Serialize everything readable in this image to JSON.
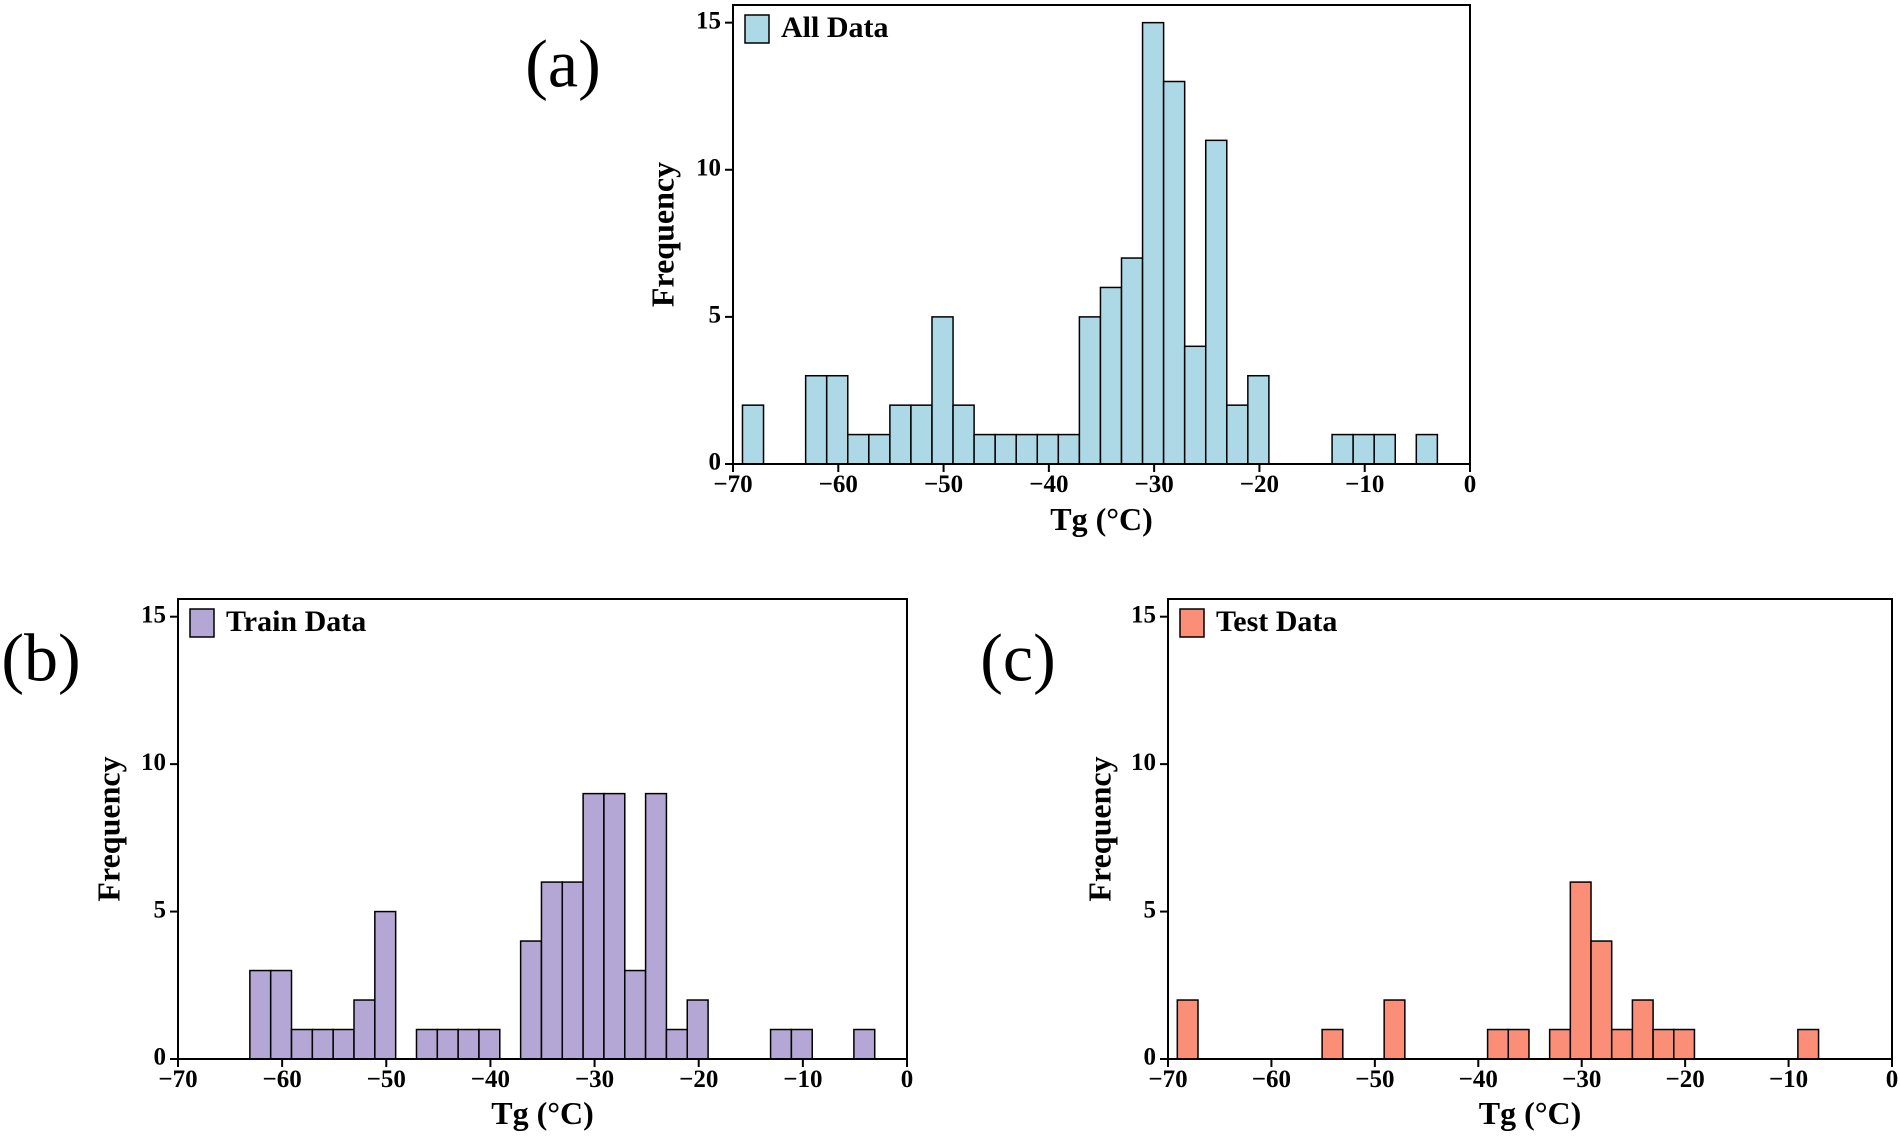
{
  "panels": [
    {
      "label": "(a)",
      "legend": "All Data",
      "chart_data": {
        "type": "bar",
        "title": "",
        "xlabel": "Tg (°C)",
        "ylabel": "Frequency",
        "xlim": [
          -70,
          0
        ],
        "ylim": [
          0,
          15.6
        ],
        "xticks": [
          -70,
          -60,
          -50,
          -40,
          -30,
          -20,
          -10,
          0
        ],
        "yticks": [
          0,
          5,
          10,
          15
        ],
        "grid": false,
        "legend_position": "top-left",
        "bar_color": "#add8e6",
        "series": [
          {
            "name": "All Data",
            "bins": [
              {
                "x0": -69.1,
                "x1": -67.1,
                "value": 2
              },
              {
                "x0": -63.1,
                "x1": -61.1,
                "value": 3
              },
              {
                "x0": -61.1,
                "x1": -59.1,
                "value": 3
              },
              {
                "x0": -59.1,
                "x1": -57.1,
                "value": 1
              },
              {
                "x0": -57.1,
                "x1": -55.1,
                "value": 1
              },
              {
                "x0": -55.1,
                "x1": -53.1,
                "value": 2
              },
              {
                "x0": -53.1,
                "x1": -51.1,
                "value": 2
              },
              {
                "x0": -51.1,
                "x1": -49.1,
                "value": 5
              },
              {
                "x0": -49.1,
                "x1": -47.1,
                "value": 2
              },
              {
                "x0": -47.1,
                "x1": -45.1,
                "value": 1
              },
              {
                "x0": -45.1,
                "x1": -43.1,
                "value": 1
              },
              {
                "x0": -43.1,
                "x1": -41.1,
                "value": 1
              },
              {
                "x0": -41.1,
                "x1": -39.1,
                "value": 1
              },
              {
                "x0": -39.1,
                "x1": -37.1,
                "value": 1
              },
              {
                "x0": -37.1,
                "x1": -35.1,
                "value": 5
              },
              {
                "x0": -35.1,
                "x1": -33.1,
                "value": 6
              },
              {
                "x0": -33.1,
                "x1": -31.1,
                "value": 7
              },
              {
                "x0": -31.1,
                "x1": -29.1,
                "value": 15
              },
              {
                "x0": -29.1,
                "x1": -27.1,
                "value": 13
              },
              {
                "x0": -27.1,
                "x1": -25.1,
                "value": 4
              },
              {
                "x0": -25.1,
                "x1": -23.1,
                "value": 11
              },
              {
                "x0": -23.1,
                "x1": -21.1,
                "value": 2
              },
              {
                "x0": -21.1,
                "x1": -19.1,
                "value": 3
              },
              {
                "x0": -13.1,
                "x1": -11.1,
                "value": 1
              },
              {
                "x0": -11.1,
                "x1": -9.1,
                "value": 1
              },
              {
                "x0": -9.1,
                "x1": -7.1,
                "value": 1
              },
              {
                "x0": -5.1,
                "x1": -3.1,
                "value": 1
              }
            ]
          }
        ]
      }
    },
    {
      "label": "(b)",
      "legend": "Train Data",
      "chart_data": {
        "type": "bar",
        "title": "",
        "xlabel": "Tg (°C)",
        "ylabel": "Frequency",
        "xlim": [
          -70,
          0
        ],
        "ylim": [
          0,
          15.6
        ],
        "xticks": [
          -70,
          -60,
          -50,
          -40,
          -30,
          -20,
          -10,
          0
        ],
        "yticks": [
          0,
          5,
          10,
          15
        ],
        "grid": false,
        "legend_position": "top-left",
        "bar_color": "#b4a7d6",
        "series": [
          {
            "name": "Train Data",
            "bins": [
              {
                "x0": -63.1,
                "x1": -61.1,
                "value": 3
              },
              {
                "x0": -61.1,
                "x1": -59.1,
                "value": 3
              },
              {
                "x0": -59.1,
                "x1": -57.1,
                "value": 1
              },
              {
                "x0": -57.1,
                "x1": -55.1,
                "value": 1
              },
              {
                "x0": -55.1,
                "x1": -53.1,
                "value": 1
              },
              {
                "x0": -53.1,
                "x1": -51.1,
                "value": 2
              },
              {
                "x0": -51.1,
                "x1": -49.1,
                "value": 5
              },
              {
                "x0": -47.1,
                "x1": -45.1,
                "value": 1
              },
              {
                "x0": -45.1,
                "x1": -43.1,
                "value": 1
              },
              {
                "x0": -43.1,
                "x1": -41.1,
                "value": 1
              },
              {
                "x0": -41.1,
                "x1": -39.1,
                "value": 1
              },
              {
                "x0": -37.1,
                "x1": -35.1,
                "value": 4
              },
              {
                "x0": -35.1,
                "x1": -33.1,
                "value": 6
              },
              {
                "x0": -33.1,
                "x1": -31.1,
                "value": 6
              },
              {
                "x0": -31.1,
                "x1": -29.1,
                "value": 9
              },
              {
                "x0": -29.1,
                "x1": -27.1,
                "value": 9
              },
              {
                "x0": -27.1,
                "x1": -25.1,
                "value": 3
              },
              {
                "x0": -25.1,
                "x1": -23.1,
                "value": 9
              },
              {
                "x0": -23.1,
                "x1": -21.1,
                "value": 1
              },
              {
                "x0": -21.1,
                "x1": -19.1,
                "value": 2
              },
              {
                "x0": -13.1,
                "x1": -11.1,
                "value": 1
              },
              {
                "x0": -11.1,
                "x1": -9.1,
                "value": 1
              },
              {
                "x0": -5.1,
                "x1": -3.1,
                "value": 1
              }
            ]
          }
        ]
      }
    },
    {
      "label": "(c)",
      "legend": "Test Data",
      "chart_data": {
        "type": "bar",
        "title": "",
        "xlabel": "Tg (°C)",
        "ylabel": "Frequency",
        "xlim": [
          -70,
          0
        ],
        "ylim": [
          0,
          15.6
        ],
        "xticks": [
          -70,
          -60,
          -50,
          -40,
          -30,
          -20,
          -10,
          0
        ],
        "yticks": [
          0,
          5,
          10,
          15
        ],
        "grid": false,
        "legend_position": "top-left",
        "bar_color": "#fa8e76",
        "series": [
          {
            "name": "Test Data",
            "bins": [
              {
                "x0": -69.1,
                "x1": -67.1,
                "value": 2
              },
              {
                "x0": -55.1,
                "x1": -53.1,
                "value": 1
              },
              {
                "x0": -49.1,
                "x1": -47.1,
                "value": 2
              },
              {
                "x0": -39.1,
                "x1": -37.1,
                "value": 1
              },
              {
                "x0": -37.1,
                "x1": -35.1,
                "value": 1
              },
              {
                "x0": -33.1,
                "x1": -31.1,
                "value": 1
              },
              {
                "x0": -31.1,
                "x1": -29.1,
                "value": 6
              },
              {
                "x0": -29.1,
                "x1": -27.1,
                "value": 4
              },
              {
                "x0": -27.1,
                "x1": -25.1,
                "value": 1
              },
              {
                "x0": -25.1,
                "x1": -23.1,
                "value": 2
              },
              {
                "x0": -23.1,
                "x1": -21.1,
                "value": 1
              },
              {
                "x0": -21.1,
                "x1": -19.1,
                "value": 1
              },
              {
                "x0": -9.1,
                "x1": -7.1,
                "value": 1
              }
            ]
          }
        ]
      }
    }
  ]
}
